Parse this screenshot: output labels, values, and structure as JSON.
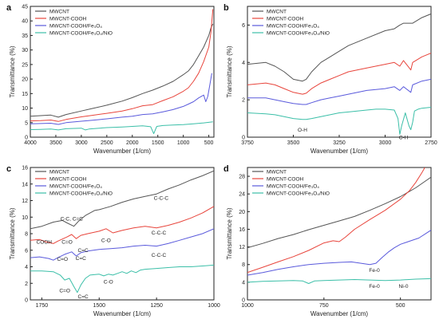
{
  "chart_data": [
    {
      "panel": "a",
      "type": "line",
      "xlabel": "Wavenumber (1/cm)",
      "ylabel": "Transmittance (%)",
      "xlim": [
        4000,
        400
      ],
      "ylim": [
        0,
        45
      ],
      "xticks": [
        4000,
        3500,
        3000,
        2500,
        2000,
        1500,
        1000,
        500
      ],
      "yticks": [
        0,
        5,
        10,
        15,
        20,
        25,
        30,
        35,
        40,
        45
      ],
      "grid": false,
      "legend_position": "top-left",
      "series": [
        {
          "name": "MWCNT",
          "color": "#555555",
          "x": [
            4000,
            3800,
            3600,
            3450,
            3300,
            3000,
            2800,
            2500,
            2200,
            2000,
            1800,
            1600,
            1400,
            1200,
            1000,
            900,
            800,
            700,
            600,
            500,
            460,
            420
          ],
          "y": [
            7.2,
            7.4,
            7.6,
            6.9,
            7.8,
            9.0,
            9.8,
            11.0,
            12.4,
            13.6,
            15.0,
            16.2,
            17.6,
            19.2,
            21.5,
            22.8,
            25.0,
            28.0,
            31.0,
            35.0,
            37.5,
            39
          ]
        },
        {
          "name": "MWCNT-COOH",
          "color": "#e8453c",
          "x": [
            4000,
            3800,
            3600,
            3450,
            3300,
            3000,
            2800,
            2500,
            2200,
            2000,
            1800,
            1600,
            1400,
            1200,
            1000,
            900,
            800,
            700,
            600,
            500,
            460,
            420
          ],
          "y": [
            5.6,
            5.7,
            5.9,
            5.4,
            6.1,
            7.0,
            7.5,
            8.2,
            9.0,
            9.8,
            10.8,
            11.2,
            12.6,
            13.9,
            15.8,
            17.0,
            19.2,
            22.0,
            26.0,
            31.0,
            36.0,
            44
          ]
        },
        {
          "name": "MWCNT-COOH/Fe₃O₄",
          "color": "#5a5adc",
          "x": [
            4000,
            3800,
            3600,
            3450,
            3300,
            3000,
            2800,
            2500,
            2200,
            2000,
            1800,
            1600,
            1400,
            1200,
            1000,
            900,
            800,
            700,
            600,
            560,
            520,
            480,
            440
          ],
          "y": [
            4.6,
            4.7,
            4.8,
            4.4,
            5.0,
            5.5,
            5.8,
            6.3,
            6.9,
            7.2,
            7.8,
            8.0,
            8.7,
            9.5,
            10.6,
            11.4,
            12.2,
            13.5,
            14.5,
            12.2,
            14.0,
            18.0,
            22.0
          ]
        },
        {
          "name": "MWCNT-COOH/Fe₃O₄/NiO",
          "color": "#3bbfa8",
          "x": [
            4000,
            3800,
            3600,
            3450,
            3300,
            3000,
            2920,
            2850,
            2500,
            2200,
            2000,
            1800,
            1640,
            1580,
            1520,
            1400,
            1200,
            1000,
            800,
            600,
            420
          ],
          "y": [
            2.6,
            2.7,
            2.8,
            2.5,
            2.9,
            3.1,
            2.5,
            2.8,
            3.3,
            3.5,
            3.7,
            3.9,
            3.6,
            1.2,
            3.7,
            4.0,
            4.2,
            4.3,
            4.6,
            4.9,
            5.3
          ]
        }
      ]
    },
    {
      "panel": "b",
      "type": "line",
      "xlabel": "Wavenumber (1/cm)",
      "ylabel": "Transmittance (%)",
      "xlim": [
        3750,
        2750
      ],
      "ylim": [
        0,
        7
      ],
      "xticks": [
        3750,
        3500,
        3250,
        3000,
        2750
      ],
      "yticks": [
        0,
        2,
        4,
        6
      ],
      "grid": false,
      "legend_position": "top-right",
      "annotations": [
        {
          "text": "O-H",
          "x": 3450,
          "y": 0.3
        },
        {
          "text": "C-H",
          "x": 2900,
          "y": -0.1
        }
      ],
      "series": [
        {
          "name": "MWCNT",
          "color": "#555555",
          "x": [
            3750,
            3650,
            3600,
            3550,
            3500,
            3450,
            3430,
            3400,
            3350,
            3300,
            3250,
            3200,
            3100,
            3000,
            2950,
            2920,
            2900,
            2850,
            2800,
            2750
          ],
          "y": [
            3.9,
            4.0,
            3.8,
            3.5,
            3.1,
            3.0,
            3.1,
            3.5,
            4.0,
            4.3,
            4.6,
            4.9,
            5.3,
            5.7,
            5.8,
            6.0,
            6.1,
            6.1,
            6.4,
            6.6
          ]
        },
        {
          "name": "MWCNT-COOH",
          "color": "#e8453c",
          "x": [
            3750,
            3650,
            3600,
            3550,
            3500,
            3450,
            3430,
            3400,
            3350,
            3300,
            3250,
            3200,
            3100,
            3000,
            2950,
            2920,
            2900,
            2860,
            2850,
            2800,
            2750
          ],
          "y": [
            2.8,
            2.9,
            2.8,
            2.6,
            2.4,
            2.3,
            2.35,
            2.6,
            2.9,
            3.1,
            3.3,
            3.5,
            3.7,
            3.9,
            4.0,
            3.8,
            4.1,
            3.6,
            4.0,
            4.3,
            4.5
          ]
        },
        {
          "name": "MWCNT-COOH/Fe₃O₄",
          "color": "#5a5adc",
          "x": [
            3750,
            3650,
            3600,
            3550,
            3500,
            3450,
            3430,
            3400,
            3350,
            3300,
            3250,
            3200,
            3100,
            3000,
            2950,
            2920,
            2900,
            2860,
            2850,
            2800,
            2750
          ],
          "y": [
            2.1,
            2.1,
            2.0,
            1.9,
            1.8,
            1.75,
            1.75,
            1.85,
            2.0,
            2.1,
            2.2,
            2.3,
            2.5,
            2.6,
            2.7,
            2.5,
            2.7,
            2.4,
            2.8,
            3.0,
            3.1
          ]
        },
        {
          "name": "MWCNT-COOH/Fe₃O₄/NiO",
          "color": "#3bbfa8",
          "x": [
            3750,
            3650,
            3600,
            3550,
            3500,
            3450,
            3430,
            3400,
            3350,
            3300,
            3250,
            3200,
            3100,
            3050,
            3000,
            2950,
            2930,
            2920,
            2910,
            2890,
            2870,
            2860,
            2850,
            2840,
            2820,
            2800,
            2750
          ],
          "y": [
            1.3,
            1.25,
            1.2,
            1.1,
            1.0,
            0.95,
            0.95,
            1.0,
            1.1,
            1.2,
            1.3,
            1.35,
            1.45,
            1.5,
            1.5,
            1.45,
            1.0,
            0.15,
            0.6,
            1.3,
            0.6,
            0.4,
            0.8,
            1.4,
            1.5,
            1.55,
            1.6
          ]
        }
      ]
    },
    {
      "panel": "c",
      "type": "line",
      "xlabel": "Wavenumber (1/cm)",
      "ylabel": "Transmittance (%)",
      "xlim": [
        1800,
        1000
      ],
      "ylim": [
        0,
        16
      ],
      "xticks": [
        1750,
        1500,
        1250,
        1000
      ],
      "yticks": [
        0,
        2,
        4,
        6,
        8,
        10,
        12,
        14,
        16
      ],
      "grid": false,
      "legend_position": "top-left",
      "annotations": [
        {
          "text": "C-C-C",
          "x": 1230,
          "y": 12.1
        },
        {
          "text": "C-C, C=C",
          "x": 1620,
          "y": 9.6
        },
        {
          "text": "C=O",
          "x": 1640,
          "y": 6.8
        },
        {
          "text": "C-O",
          "x": 1470,
          "y": 7.0
        },
        {
          "text": "C=C",
          "x": 1570,
          "y": 5.8
        },
        {
          "text": "COOH",
          "x": 1740,
          "y": 6.8
        },
        {
          "text": "C-C-C",
          "x": 1240,
          "y": 7.9
        },
        {
          "text": "C=O",
          "x": 1660,
          "y": 4.7
        },
        {
          "text": "C=C",
          "x": 1580,
          "y": 4.8
        },
        {
          "text": "C-C-C",
          "x": 1240,
          "y": 5.2
        },
        {
          "text": "C-O",
          "x": 1460,
          "y": 2.0
        },
        {
          "text": "C=O",
          "x": 1650,
          "y": 0.9
        },
        {
          "text": "C=C",
          "x": 1570,
          "y": 0.2
        }
      ],
      "series": [
        {
          "name": "MWCNT",
          "color": "#555555",
          "x": [
            1800,
            1750,
            1700,
            1660,
            1640,
            1610,
            1590,
            1560,
            1520,
            1500,
            1450,
            1400,
            1350,
            1300,
            1250,
            1200,
            1150,
            1100,
            1050,
            1000
          ],
          "y": [
            8.6,
            8.9,
            9.4,
            9.6,
            9.3,
            8.9,
            9.5,
            10.2,
            10.8,
            10.9,
            11.3,
            11.8,
            12.2,
            12.5,
            12.8,
            13.4,
            13.9,
            14.5,
            15.0,
            15.6
          ]
        },
        {
          "name": "MWCNT-COOH",
          "color": "#e8453c",
          "x": [
            1800,
            1760,
            1730,
            1700,
            1680,
            1640,
            1620,
            1600,
            1580,
            1550,
            1500,
            1470,
            1440,
            1400,
            1350,
            1300,
            1250,
            1200,
            1150,
            1100,
            1050,
            1000
          ],
          "y": [
            7.2,
            7.3,
            7.0,
            6.8,
            7.1,
            7.6,
            7.9,
            7.4,
            7.8,
            8.0,
            8.3,
            8.6,
            8.1,
            8.4,
            8.7,
            8.9,
            8.7,
            9.0,
            9.4,
            9.9,
            10.5,
            11.3
          ]
        },
        {
          "name": "MWCNT-COOH/Fe₃O₄",
          "color": "#5a5adc",
          "x": [
            1800,
            1760,
            1720,
            1700,
            1680,
            1650,
            1620,
            1600,
            1580,
            1550,
            1500,
            1450,
            1400,
            1350,
            1300,
            1250,
            1200,
            1150,
            1100,
            1050,
            1000
          ],
          "y": [
            5.1,
            5.2,
            5.0,
            4.8,
            5.1,
            5.5,
            5.8,
            5.3,
            5.7,
            5.9,
            6.1,
            6.2,
            6.3,
            6.5,
            6.6,
            6.5,
            6.8,
            7.2,
            7.6,
            8.0,
            8.6
          ]
        },
        {
          "name": "MWCNT-COOH/Fe₃O₄/NiO",
          "color": "#3bbfa8",
          "x": [
            1800,
            1750,
            1700,
            1670,
            1650,
            1630,
            1610,
            1595,
            1580,
            1560,
            1540,
            1500,
            1480,
            1460,
            1440,
            1420,
            1400,
            1380,
            1360,
            1340,
            1320,
            1300,
            1250,
            1200,
            1150,
            1100,
            1050,
            1000
          ],
          "y": [
            3.5,
            3.5,
            3.4,
            3.0,
            2.4,
            2.6,
            1.6,
            0.9,
            1.8,
            2.6,
            3.0,
            3.1,
            2.9,
            3.1,
            3.0,
            3.2,
            3.4,
            3.2,
            3.5,
            3.3,
            3.6,
            3.7,
            3.8,
            3.9,
            4.0,
            4.0,
            4.1,
            4.2
          ]
        }
      ]
    },
    {
      "panel": "d",
      "type": "line",
      "xlabel": "Wavenumber (1/cm)",
      "ylabel": "Transmittance (%)",
      "xlim": [
        1000,
        400
      ],
      "ylim": [
        0,
        30
      ],
      "xticks": [
        1000,
        750,
        500
      ],
      "yticks": [
        0,
        4,
        8,
        12,
        16,
        20,
        24,
        28
      ],
      "grid": false,
      "legend_position": "top-left",
      "annotations": [
        {
          "text": "Fe-0",
          "x": 585,
          "y": 6.3
        },
        {
          "text": "Fe-0",
          "x": 585,
          "y": 2.7
        },
        {
          "text": "Ni-0",
          "x": 490,
          "y": 2.7
        }
      ],
      "series": [
        {
          "name": "MWCNT",
          "color": "#555555",
          "x": [
            1000,
            950,
            900,
            850,
            800,
            750,
            700,
            650,
            600,
            550,
            500,
            450,
            400
          ],
          "y": [
            11.8,
            12.8,
            13.9,
            14.8,
            15.9,
            16.9,
            17.9,
            18.9,
            20.3,
            21.8,
            23.4,
            25.4,
            27.8
          ]
        },
        {
          "name": "MWCNT-COOH",
          "color": "#e8453c",
          "x": [
            1000,
            950,
            900,
            850,
            800,
            750,
            720,
            700,
            680,
            650,
            600,
            550,
            500,
            470,
            450,
            430,
            420
          ],
          "y": [
            6.2,
            7.4,
            8.6,
            9.8,
            11.2,
            12.9,
            13.4,
            13.2,
            14.2,
            16.0,
            18.2,
            20.3,
            22.8,
            24.8,
            26.6,
            28.8,
            30.0
          ]
        },
        {
          "name": "MWCNT-COOH/Fe₃O₄",
          "color": "#5a5adc",
          "x": [
            1000,
            950,
            900,
            850,
            800,
            750,
            700,
            660,
            640,
            620,
            600,
            580,
            560,
            540,
            520,
            500,
            470,
            440,
            400
          ],
          "y": [
            5.6,
            6.2,
            6.9,
            7.5,
            8.0,
            8.3,
            8.5,
            8.6,
            8.4,
            8.2,
            8.0,
            8.3,
            9.6,
            10.8,
            11.8,
            12.6,
            13.3,
            14.0,
            15.8
          ]
        },
        {
          "name": "MWCNT-COOH/Fe₃O₄/NiO",
          "color": "#3bbfa8",
          "x": [
            1000,
            950,
            900,
            850,
            820,
            800,
            780,
            750,
            700,
            650,
            600,
            550,
            500,
            450,
            400
          ],
          "y": [
            4.0,
            4.2,
            4.3,
            4.4,
            4.3,
            3.7,
            4.3,
            4.4,
            4.5,
            4.6,
            4.5,
            4.4,
            4.5,
            4.7,
            4.8
          ]
        }
      ]
    }
  ]
}
